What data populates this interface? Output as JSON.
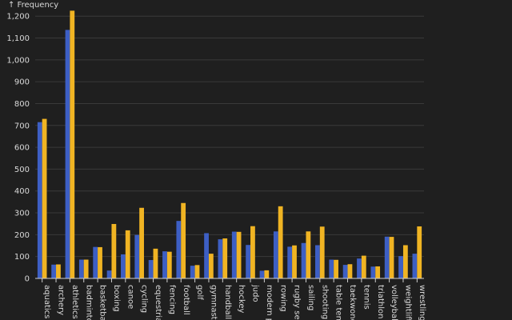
{
  "chart_data": {
    "type": "bar",
    "title": "",
    "xlabel": "",
    "ylabel": "↑ Frequency",
    "ylim": [
      0,
      1230
    ],
    "yticks": [
      0,
      100,
      200,
      300,
      400,
      500,
      600,
      700,
      800,
      900,
      1000,
      1100,
      1200
    ],
    "ytick_labels": [
      "0",
      "100",
      "200",
      "300",
      "400",
      "500",
      "600",
      "700",
      "800",
      "900",
      "1,000",
      "1,100",
      "1,200"
    ],
    "grid": true,
    "categories": [
      "aquatics",
      "archery",
      "athletics",
      "badminton",
      "basketball",
      "boxing",
      "canoe",
      "cycling",
      "equestrian",
      "fencing",
      "football",
      "golf",
      "gymnastics",
      "handball",
      "hockey",
      "judo",
      "modern pentathlon",
      "rowing",
      "rugby sevens",
      "sailing",
      "shooting",
      "table tennis",
      "taekwondo",
      "tennis",
      "triathlon",
      "volleyball",
      "weightlifting",
      "wrestling"
    ],
    "category_labels_shown": [
      "aquatics",
      "archery",
      "athletics",
      "badminton",
      "basketball",
      "boxing",
      "canoe",
      "cycling",
      "equestrian",
      "fencing",
      "football",
      "golf",
      "gymnastic",
      "handball",
      "hockey",
      "judo",
      "modern pe",
      "rowing",
      "rugby seve",
      "sailing",
      "shooting",
      "table tenni",
      "taekwondo",
      "tennis",
      "triathlon",
      "volleyball",
      "weightlifti",
      "wrestling"
    ],
    "series": [
      {
        "color": "#3d5fc4",
        "values": [
          715,
          63,
          1137,
          86,
          144,
          36,
          110,
          199,
          84,
          124,
          263,
          58,
          207,
          179,
          214,
          153,
          35,
          215,
          145,
          162,
          152,
          86,
          62,
          91,
          54,
          191,
          102,
          113
        ]
      },
      {
        "color": "#f0b423",
        "values": [
          730,
          64,
          1225,
          86,
          143,
          249,
          220,
          323,
          136,
          122,
          345,
          61,
          113,
          183,
          213,
          239,
          37,
          330,
          151,
          215,
          237,
          85,
          65,
          104,
          55,
          190,
          152,
          238
        ]
      }
    ]
  }
}
